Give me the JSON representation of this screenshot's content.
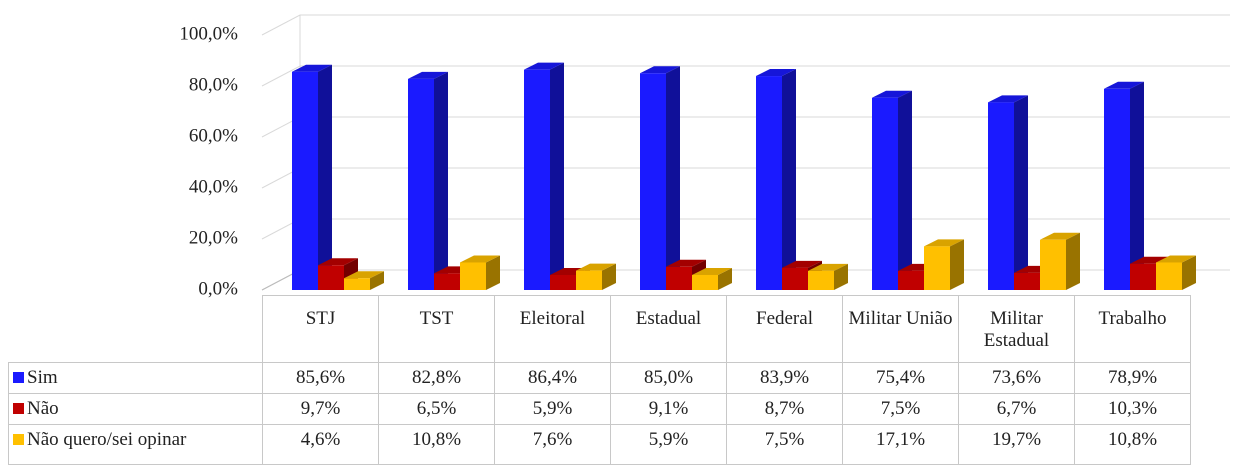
{
  "chart_data": {
    "type": "bar3d",
    "categories": [
      "STJ",
      "TST",
      "Eleitoral",
      "Estadual",
      "Federal",
      "Militar União",
      "Militar Estadual",
      "Trabalho"
    ],
    "series": [
      {
        "name": "Sim",
        "color": "#1a1aff",
        "values": [
          85.6,
          82.8,
          86.4,
          85.0,
          83.9,
          75.4,
          73.6,
          78.9
        ],
        "value_labels": [
          "85,6%",
          "82,8%",
          "86,4%",
          "85,0%",
          "83,9%",
          "75,4%",
          "73,6%",
          "78,9%"
        ]
      },
      {
        "name": "Não",
        "color": "#c00000",
        "values": [
          9.7,
          6.5,
          5.9,
          9.1,
          8.7,
          7.5,
          6.7,
          10.3
        ],
        "value_labels": [
          "9,7%",
          "6,5%",
          "5,9%",
          "9,1%",
          "8,7%",
          "7,5%",
          "6,7%",
          "10,3%"
        ]
      },
      {
        "name": "Não quero/sei opinar",
        "color": "#ffc000",
        "values": [
          4.6,
          10.8,
          7.6,
          5.9,
          7.5,
          17.1,
          19.7,
          10.8
        ],
        "value_labels": [
          "4,6%",
          "10,8%",
          "7,6%",
          "5,9%",
          "7,5%",
          "17,1%",
          "19,7%",
          "10,8%"
        ]
      }
    ],
    "ylim": [
      0,
      100
    ],
    "yticks": [
      {
        "value": 0,
        "label": "0,0%"
      },
      {
        "value": 20,
        "label": "20,0%"
      },
      {
        "value": 40,
        "label": "40,0%"
      },
      {
        "value": 60,
        "label": "60,0%"
      },
      {
        "value": 80,
        "label": "80,0%"
      },
      {
        "value": 100,
        "label": "100,0%"
      }
    ],
    "grid": true
  }
}
